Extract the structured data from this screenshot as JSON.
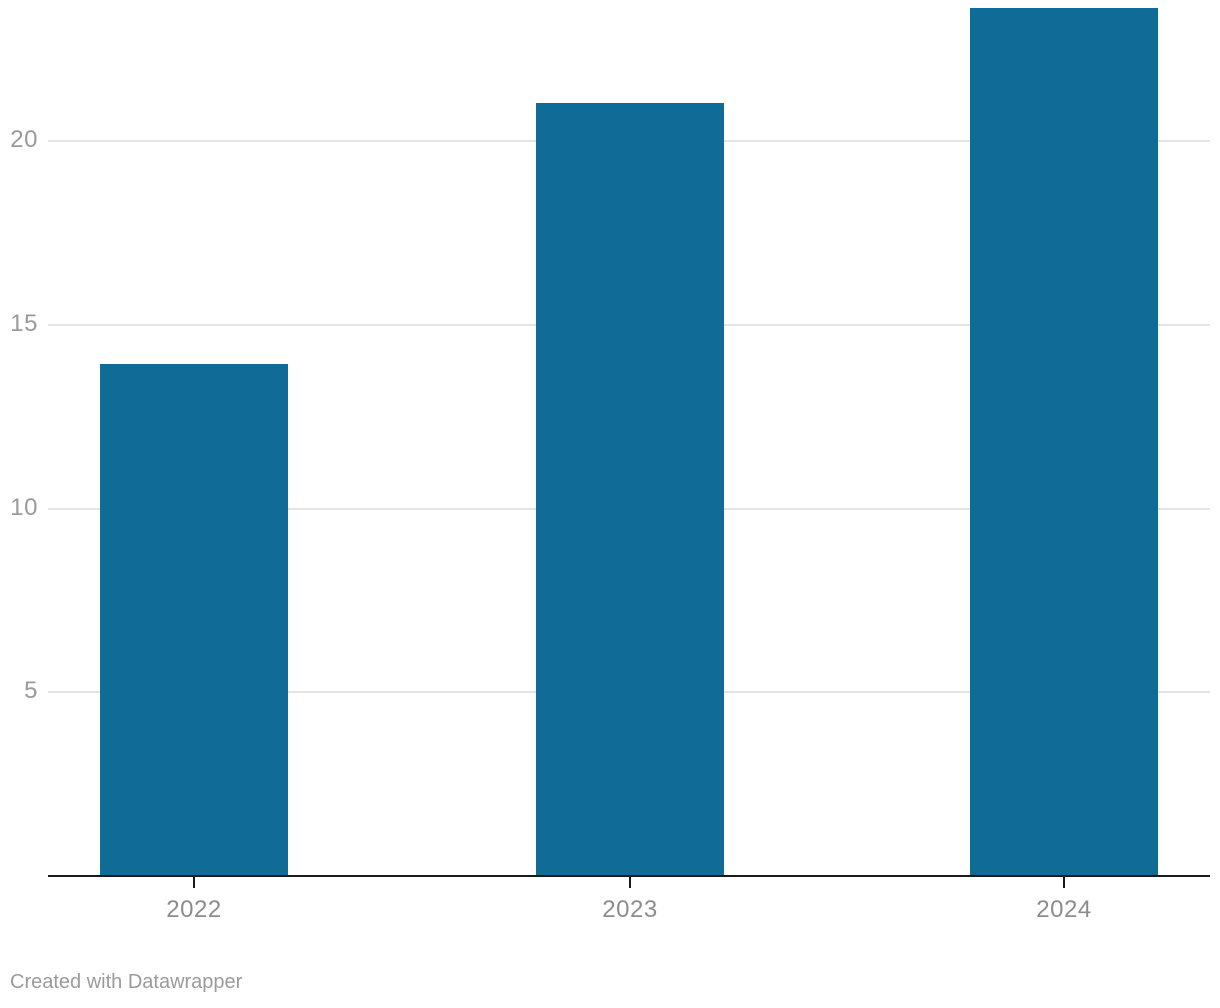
{
  "chart_data": {
    "type": "bar",
    "categories": [
      "2022",
      "2023",
      "2024"
    ],
    "values": [
      13.9,
      21,
      23.6
    ],
    "title": "",
    "xlabel": "",
    "ylabel": "",
    "ylim": [
      0,
      24
    ],
    "yticks": [
      5,
      10,
      15,
      20
    ],
    "grid": true,
    "legend": false,
    "colors": {
      "bar": "#0f6c96",
      "gridline": "#e3e3e3",
      "axis": "#1a1a1a",
      "tick": "#1a1a1a",
      "ytick_label": "#9a9a9a",
      "xtick_label": "#8c8c8c"
    }
  },
  "footer": {
    "attribution": "Created with Datawrapper"
  }
}
